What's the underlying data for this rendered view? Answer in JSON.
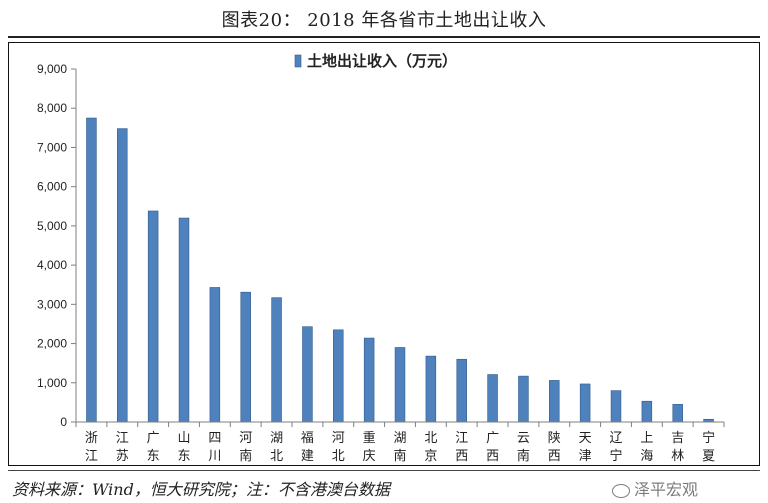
{
  "figure": {
    "title": "图表20：    2018 年各省市土地出让收入",
    "source": "资料来源：Wind，恒大研究院；注：不含港澳台数据",
    "watermark": "泽平宏观"
  },
  "colors": {
    "bar_fill": "#4f81bd",
    "bar_edge": "#2f5c8f",
    "axis": "#7f7f7f",
    "text": "#222222"
  },
  "chart_data": {
    "type": "bar",
    "categories": [
      "浙江",
      "江苏",
      "广东",
      "山东",
      "四川",
      "河南",
      "湖北",
      "福建",
      "河北",
      "重庆",
      "湖南",
      "北京",
      "江西",
      "广西",
      "云南",
      "陕西",
      "天津",
      "辽宁",
      "上海",
      "吉林",
      "宁夏"
    ],
    "series": [
      {
        "name": "土地出让收入（万元）",
        "values": [
          7750,
          7480,
          5380,
          5200,
          3430,
          3310,
          3170,
          2430,
          2350,
          2140,
          1900,
          1680,
          1600,
          1210,
          1170,
          1060,
          970,
          800,
          530,
          450,
          70
        ]
      }
    ],
    "ylim": [
      0,
      9000
    ],
    "yticks": [
      0,
      1000,
      2000,
      3000,
      4000,
      5000,
      6000,
      7000,
      8000,
      9000
    ],
    "ytick_labels": [
      "0",
      "1,000",
      "2,000",
      "3,000",
      "4,000",
      "5,000",
      "6,000",
      "7,000",
      "8,000",
      "9,000"
    ],
    "legend_position": "top-center",
    "grid": false
  }
}
